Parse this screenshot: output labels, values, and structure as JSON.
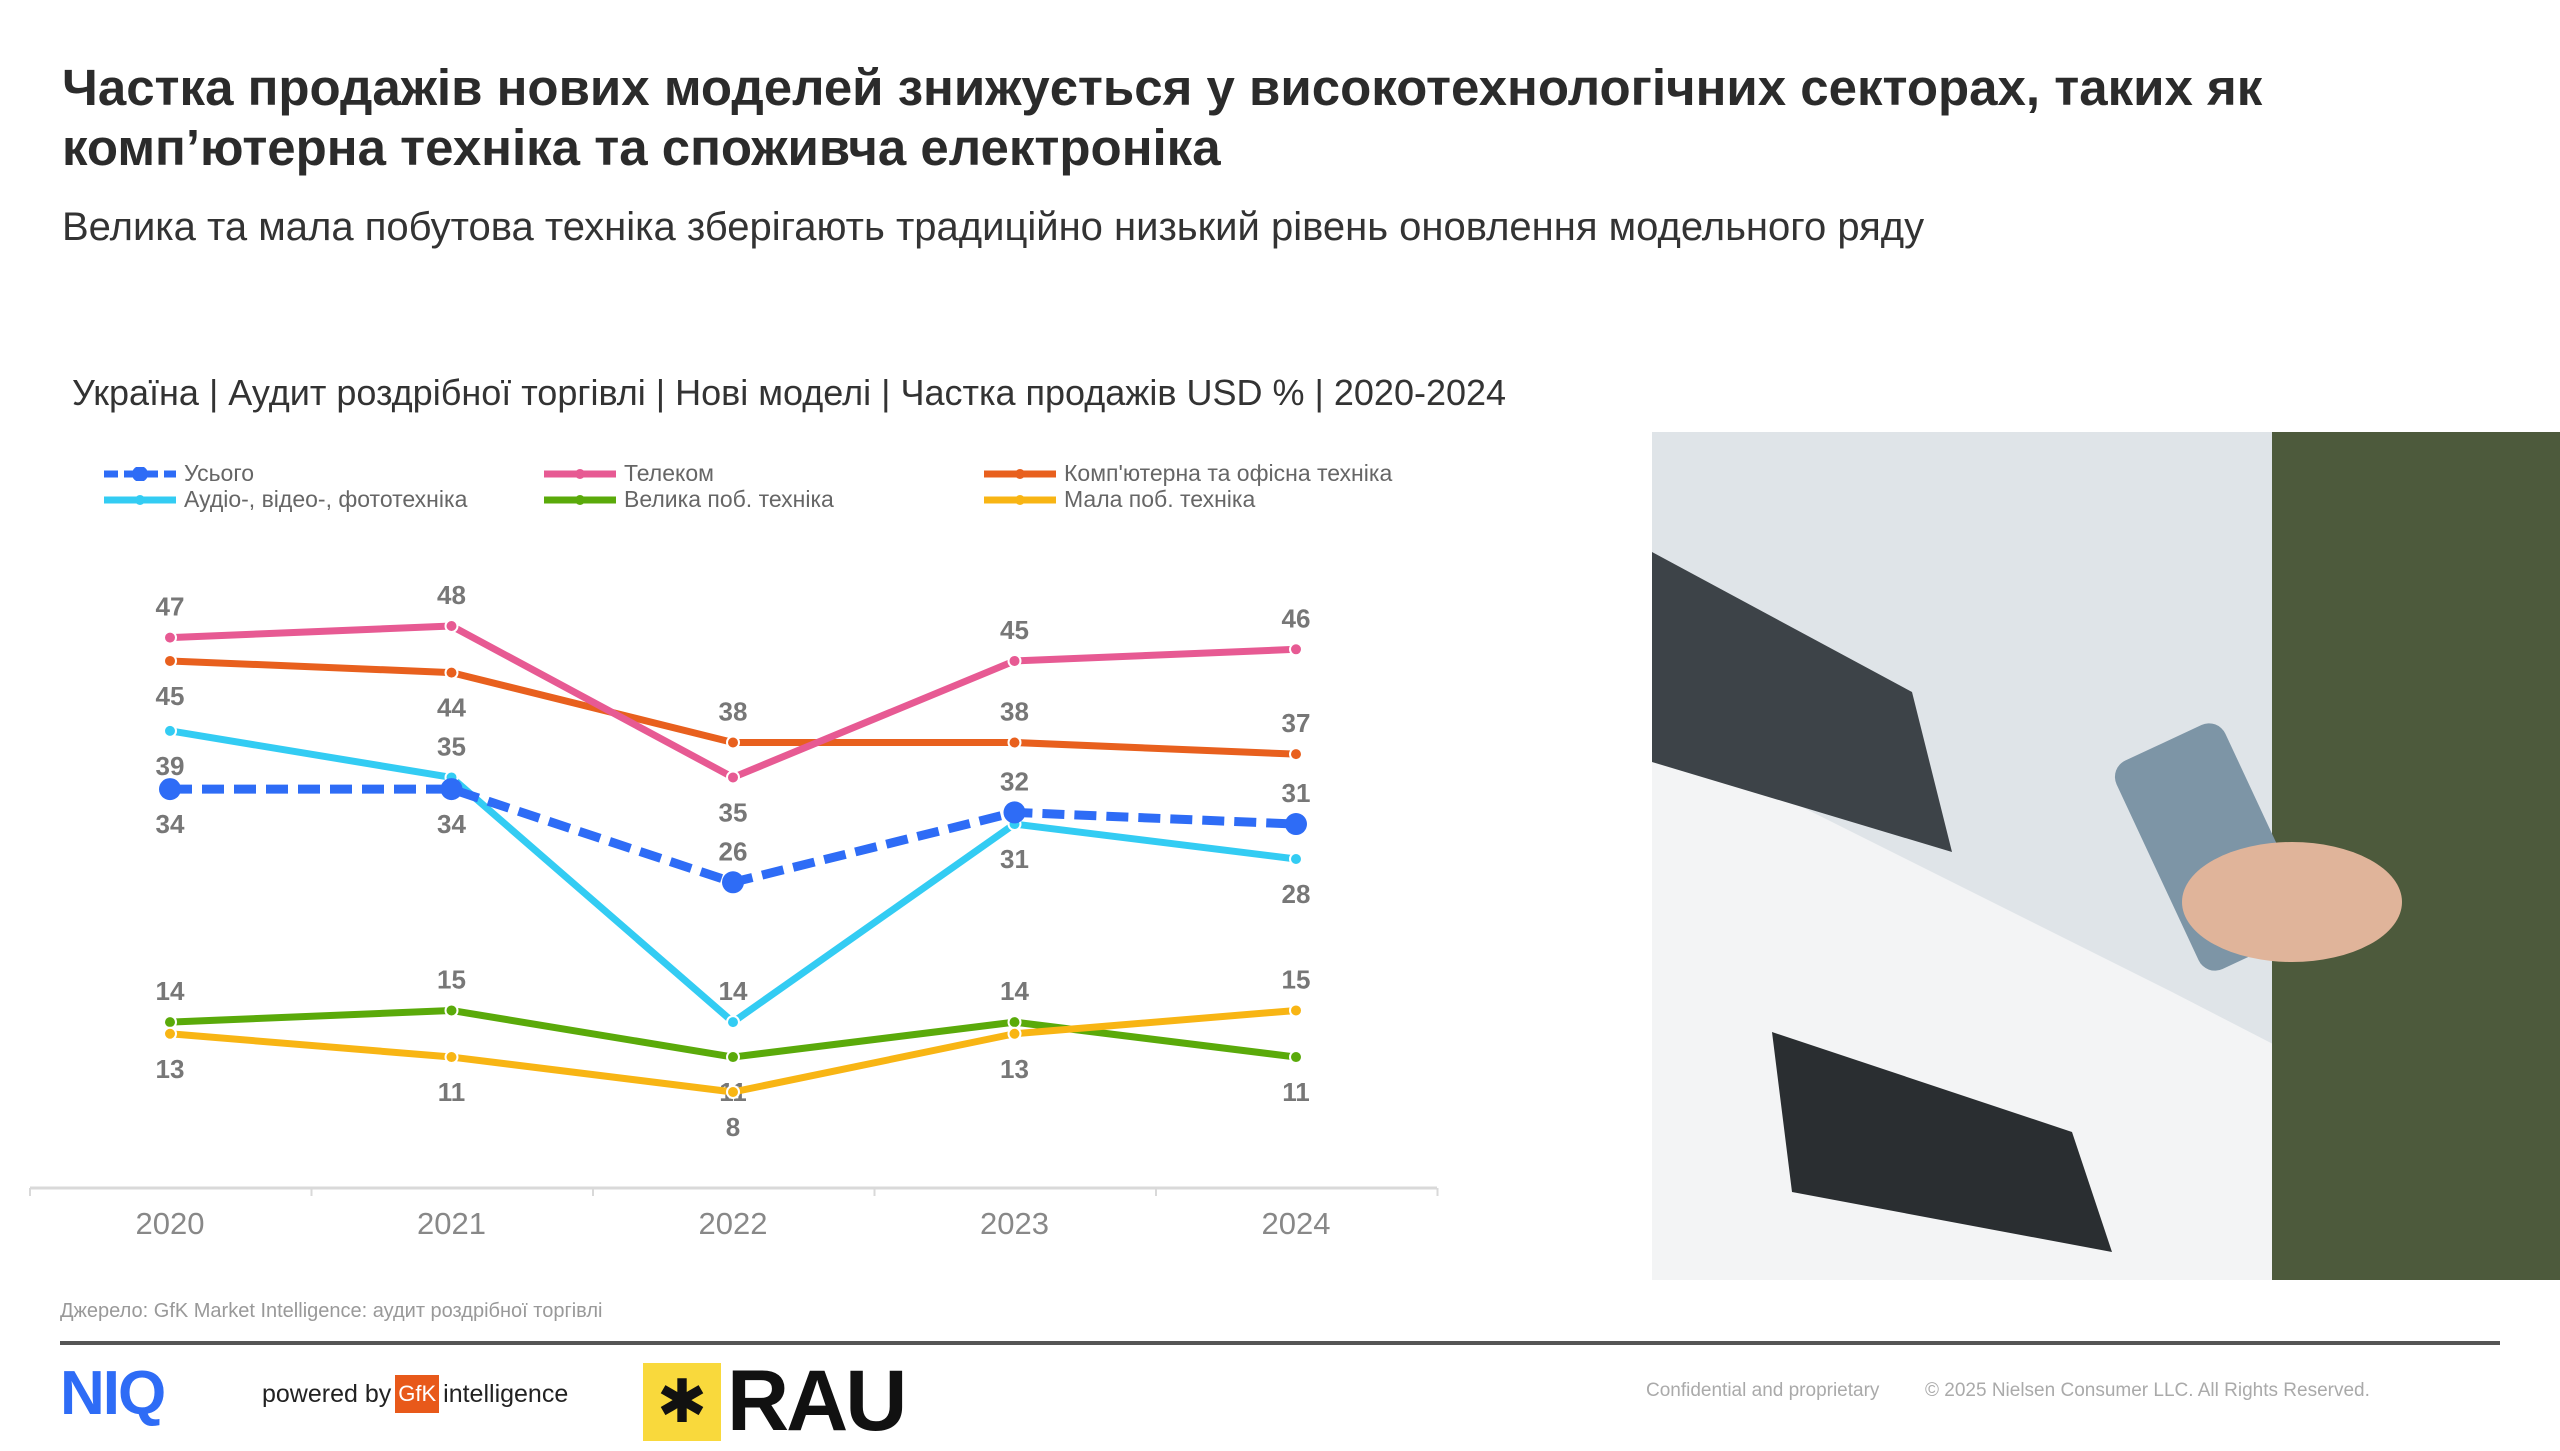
{
  "header": {
    "title": "Частка продажів нових моделей знижується у високотехнологічних секторах, таких як комп’ютерна техніка та споживча електроніка",
    "subtitle": "Велика та мала побутова техніка зберігають традиційно низький рівень оновлення модельного ряду"
  },
  "chart_data": {
    "type": "line",
    "title": "Україна | Аудит роздрібної торгівлі | Нові моделі | Частка продажів USD % | 2020-2024",
    "categories": [
      "2020",
      "2021",
      "2022",
      "2023",
      "2024"
    ],
    "legend_placement": "top",
    "grid": false,
    "series": [
      {
        "name": "Усього",
        "values": [
          34,
          34,
          26,
          32,
          31
        ],
        "color": "#2e6cf6",
        "dashed": true,
        "label_pos": [
          "below",
          "below",
          "above",
          "above",
          "above"
        ]
      },
      {
        "name": "Телеком",
        "values": [
          47,
          48,
          35,
          45,
          46
        ],
        "color": "#e75a93",
        "label_pos": [
          "above",
          "above",
          "below",
          "above",
          "above"
        ]
      },
      {
        "name": "Комп'ютерна та офісна техніка",
        "values": [
          45,
          44,
          38,
          38,
          37
        ],
        "color": "#e8601e",
        "label_pos": [
          "below",
          "below",
          "above",
          "above",
          "above"
        ]
      },
      {
        "name": "Аудіо-, відео-, фототехніка",
        "values": [
          39,
          35,
          14,
          31,
          28
        ],
        "color": "#33ccf3",
        "label_pos": [
          "below",
          "above",
          "above",
          "below",
          "below"
        ]
      },
      {
        "name": "Велика поб. техніка",
        "values": [
          14,
          15,
          11,
          14,
          11
        ],
        "color": "#5aaa0a",
        "label_pos": [
          "above",
          "above",
          "below",
          "above",
          "below"
        ]
      },
      {
        "name": "Мала поб. техніка",
        "values": [
          13,
          11,
          8,
          13,
          15
        ],
        "color": "#f8b514",
        "label_pos": [
          "below",
          "below",
          "below",
          "below",
          "above"
        ]
      }
    ]
  },
  "footer": {
    "source": "Джерело: GfK Market Intelligence: аудит роздрібної торгівлі",
    "confidential": "Confidential and proprietary",
    "copyright": "© 2025 Nielsen Consumer LLC. All Rights Reserved.",
    "niq_logo": "NIQ",
    "powered_by": "powered by",
    "gfk": "GfK",
    "intelligence": "intelligence",
    "rau_logo": "RAU"
  }
}
